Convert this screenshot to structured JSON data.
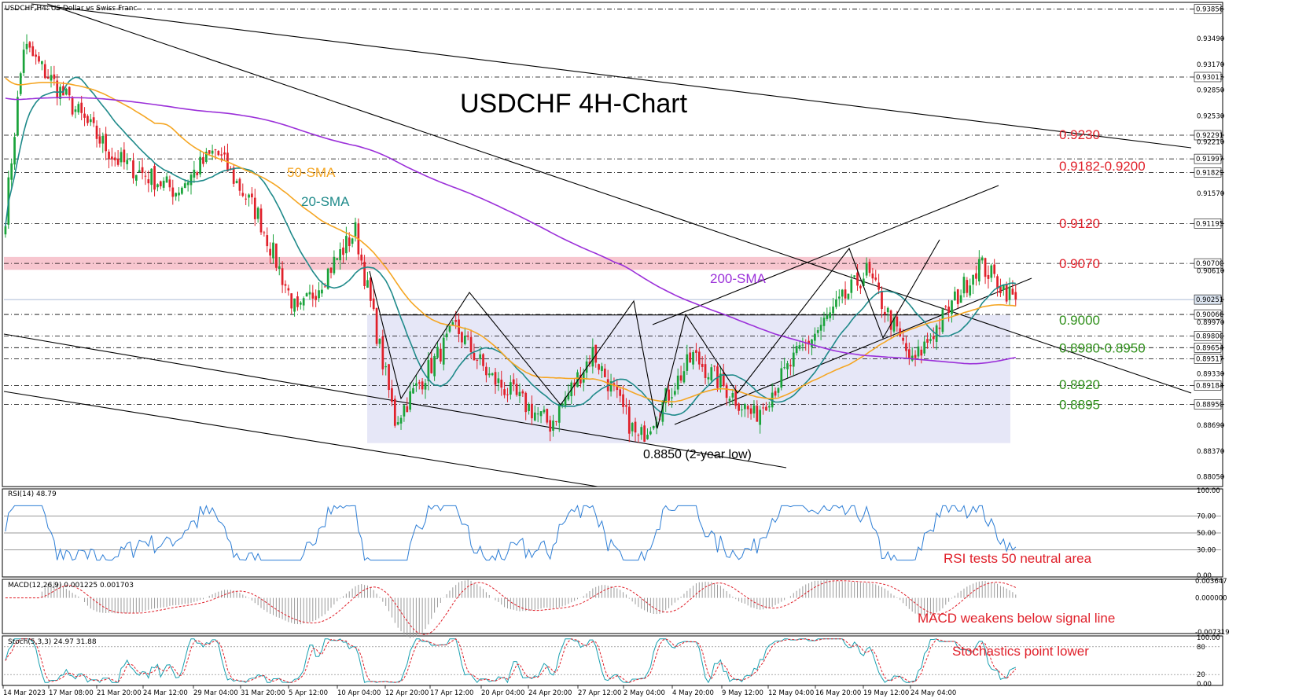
{
  "chart_info": "USDCHF,H4:  US Dollar vs Swiss Franc",
  "title": "USDCHF 4H-Chart",
  "colors": {
    "up": "#1aa33a",
    "down": "#e0202a",
    "sma20": "#1f8a8a",
    "sma50": "#f5a623",
    "sma200": "#9b30d9",
    "resistance_zone": "#f7c6cf",
    "range_box": "#e6e7f7",
    "level_red": "#e0202a",
    "level_green": "#2f8f1a",
    "trend": "#000000",
    "rsi": "#2f7fd6",
    "macd_hist": "#9a9a9a",
    "macd_signal": "#e0202a",
    "stoch_main": "#1aa0b0",
    "stoch_signal": "#e0202a"
  },
  "ma_labels": {
    "sma50": "50-SMA",
    "sma20": "20-SMA",
    "sma200": "200-SMA"
  },
  "level_labels": [
    {
      "text": "0.9230",
      "color": "red",
      "value": 0.923
    },
    {
      "text": "0.9182-0.9200",
      "color": "red",
      "value": 0.9191
    },
    {
      "text": "0.9120",
      "color": "red",
      "value": 0.912
    },
    {
      "text": "0.9070",
      "color": "red",
      "value": 0.907
    },
    {
      "text": "0.9000",
      "color": "green",
      "value": 0.9
    },
    {
      "text": "0.8980-0.8950",
      "color": "green",
      "value": 0.8965
    },
    {
      "text": "0.8920",
      "color": "green",
      "value": 0.892
    },
    {
      "text": "0.8895",
      "color": "green",
      "value": 0.8895
    }
  ],
  "annotations": {
    "low": "0.8850 (2-year low)"
  },
  "price_axis": [
    "0.93856",
    "0.93490",
    "0.93170",
    "0.93013",
    "0.92850",
    "0.92530",
    "0.92291",
    "0.92210",
    "0.91997",
    "0.91829",
    "0.91570",
    "0.91195",
    "0.90700",
    "0.90610",
    "0.90251",
    "0.90066",
    "0.89970",
    "0.89800",
    "0.89654",
    "0.89517",
    "0.89330",
    "0.89184",
    "0.88950",
    "0.88690",
    "0.88370",
    "0.88050"
  ],
  "hlines": [
    0.93856,
    0.93013,
    0.92291,
    0.91997,
    0.91829,
    0.91195,
    0.907,
    0.90066,
    0.898,
    0.89654,
    0.89517,
    0.89184,
    0.8895
  ],
  "time_axis": [
    "14 Mar 2023",
    "17 Mar 08:00",
    "21 Mar 20:00",
    "24 Mar 12:00",
    "29 Mar 04:00",
    "31 Mar 20:00",
    "5 Apr 12:00",
    "10 Apr 04:00",
    "12 Apr 20:00",
    "17 Apr 12:00",
    "20 Apr 04:00",
    "24 Apr 20:00",
    "27 Apr 12:00",
    "2 May 04:00",
    "4 May 20:00",
    "9 May 12:00",
    "12 May 04:00",
    "16 May 20:00",
    "19 May 12:00",
    "24 May 04:00"
  ],
  "rsi": {
    "label": "RSI(14) 48.79",
    "axis": [
      "100.00",
      "70.00",
      "50.00",
      "30.00",
      "0.00"
    ],
    "note": "RSI tests 50 neutral area"
  },
  "macd": {
    "label": "MACD(12,26,9) 0.001225 0.001703",
    "axis": [
      "0.003647",
      "0.000000",
      "-0.007319"
    ],
    "note": "MACD weakens below signal line"
  },
  "stoch": {
    "label": "Stoch(5,3,3) 24.97 31.88",
    "axis": [
      "100.00",
      "80",
      "20",
      "0.00"
    ],
    "note": "Stochastics point lower"
  },
  "chart_data": {
    "type": "candlestick",
    "symbol": "USDCHF",
    "timeframe": "H4",
    "ylim": [
      0.8795,
      0.9392
    ],
    "key_points": [
      {
        "x": "14 Mar 2023",
        "y": 0.913
      },
      {
        "x": "15 Mar 2023",
        "y": 0.934
      },
      {
        "x": "21 Mar 20:00",
        "y": 0.92
      },
      {
        "x": "24 Mar 12:00",
        "y": 0.916
      },
      {
        "x": "29 Mar 04:00",
        "y": 0.921
      },
      {
        "x": "31 Mar 20:00",
        "y": 0.913
      },
      {
        "x": "5 Apr 12:00",
        "y": 0.9005
      },
      {
        "x": "10 Apr 04:00",
        "y": 0.911
      },
      {
        "x": "12 Apr 20:00",
        "y": 0.8875
      },
      {
        "x": "17 Apr 12:00",
        "y": 0.899
      },
      {
        "x": "20 Apr 04:00",
        "y": 0.893
      },
      {
        "x": "24 Apr 20:00",
        "y": 0.887
      },
      {
        "x": "27 Apr 12:00",
        "y": 0.896
      },
      {
        "x": "2 May 04:00",
        "y": 0.885
      },
      {
        "x": "4 May 20:00",
        "y": 0.8955
      },
      {
        "x": "9 May 12:00",
        "y": 0.888
      },
      {
        "x": "12 May 04:00",
        "y": 0.896
      },
      {
        "x": "16 May 20:00",
        "y": 0.906
      },
      {
        "x": "19 May 12:00",
        "y": 0.8945
      },
      {
        "x": "24 May 04:00",
        "y": 0.907
      },
      {
        "x": "25 May",
        "y": 0.9025
      }
    ],
    "last_price": 0.90251,
    "series": [
      {
        "name": "20-SMA"
      },
      {
        "name": "50-SMA"
      },
      {
        "name": "200-SMA"
      }
    ],
    "resistance_zone": [
      0.9062,
      0.9078
    ],
    "range_box": [
      0.885,
      0.9006
    ]
  }
}
